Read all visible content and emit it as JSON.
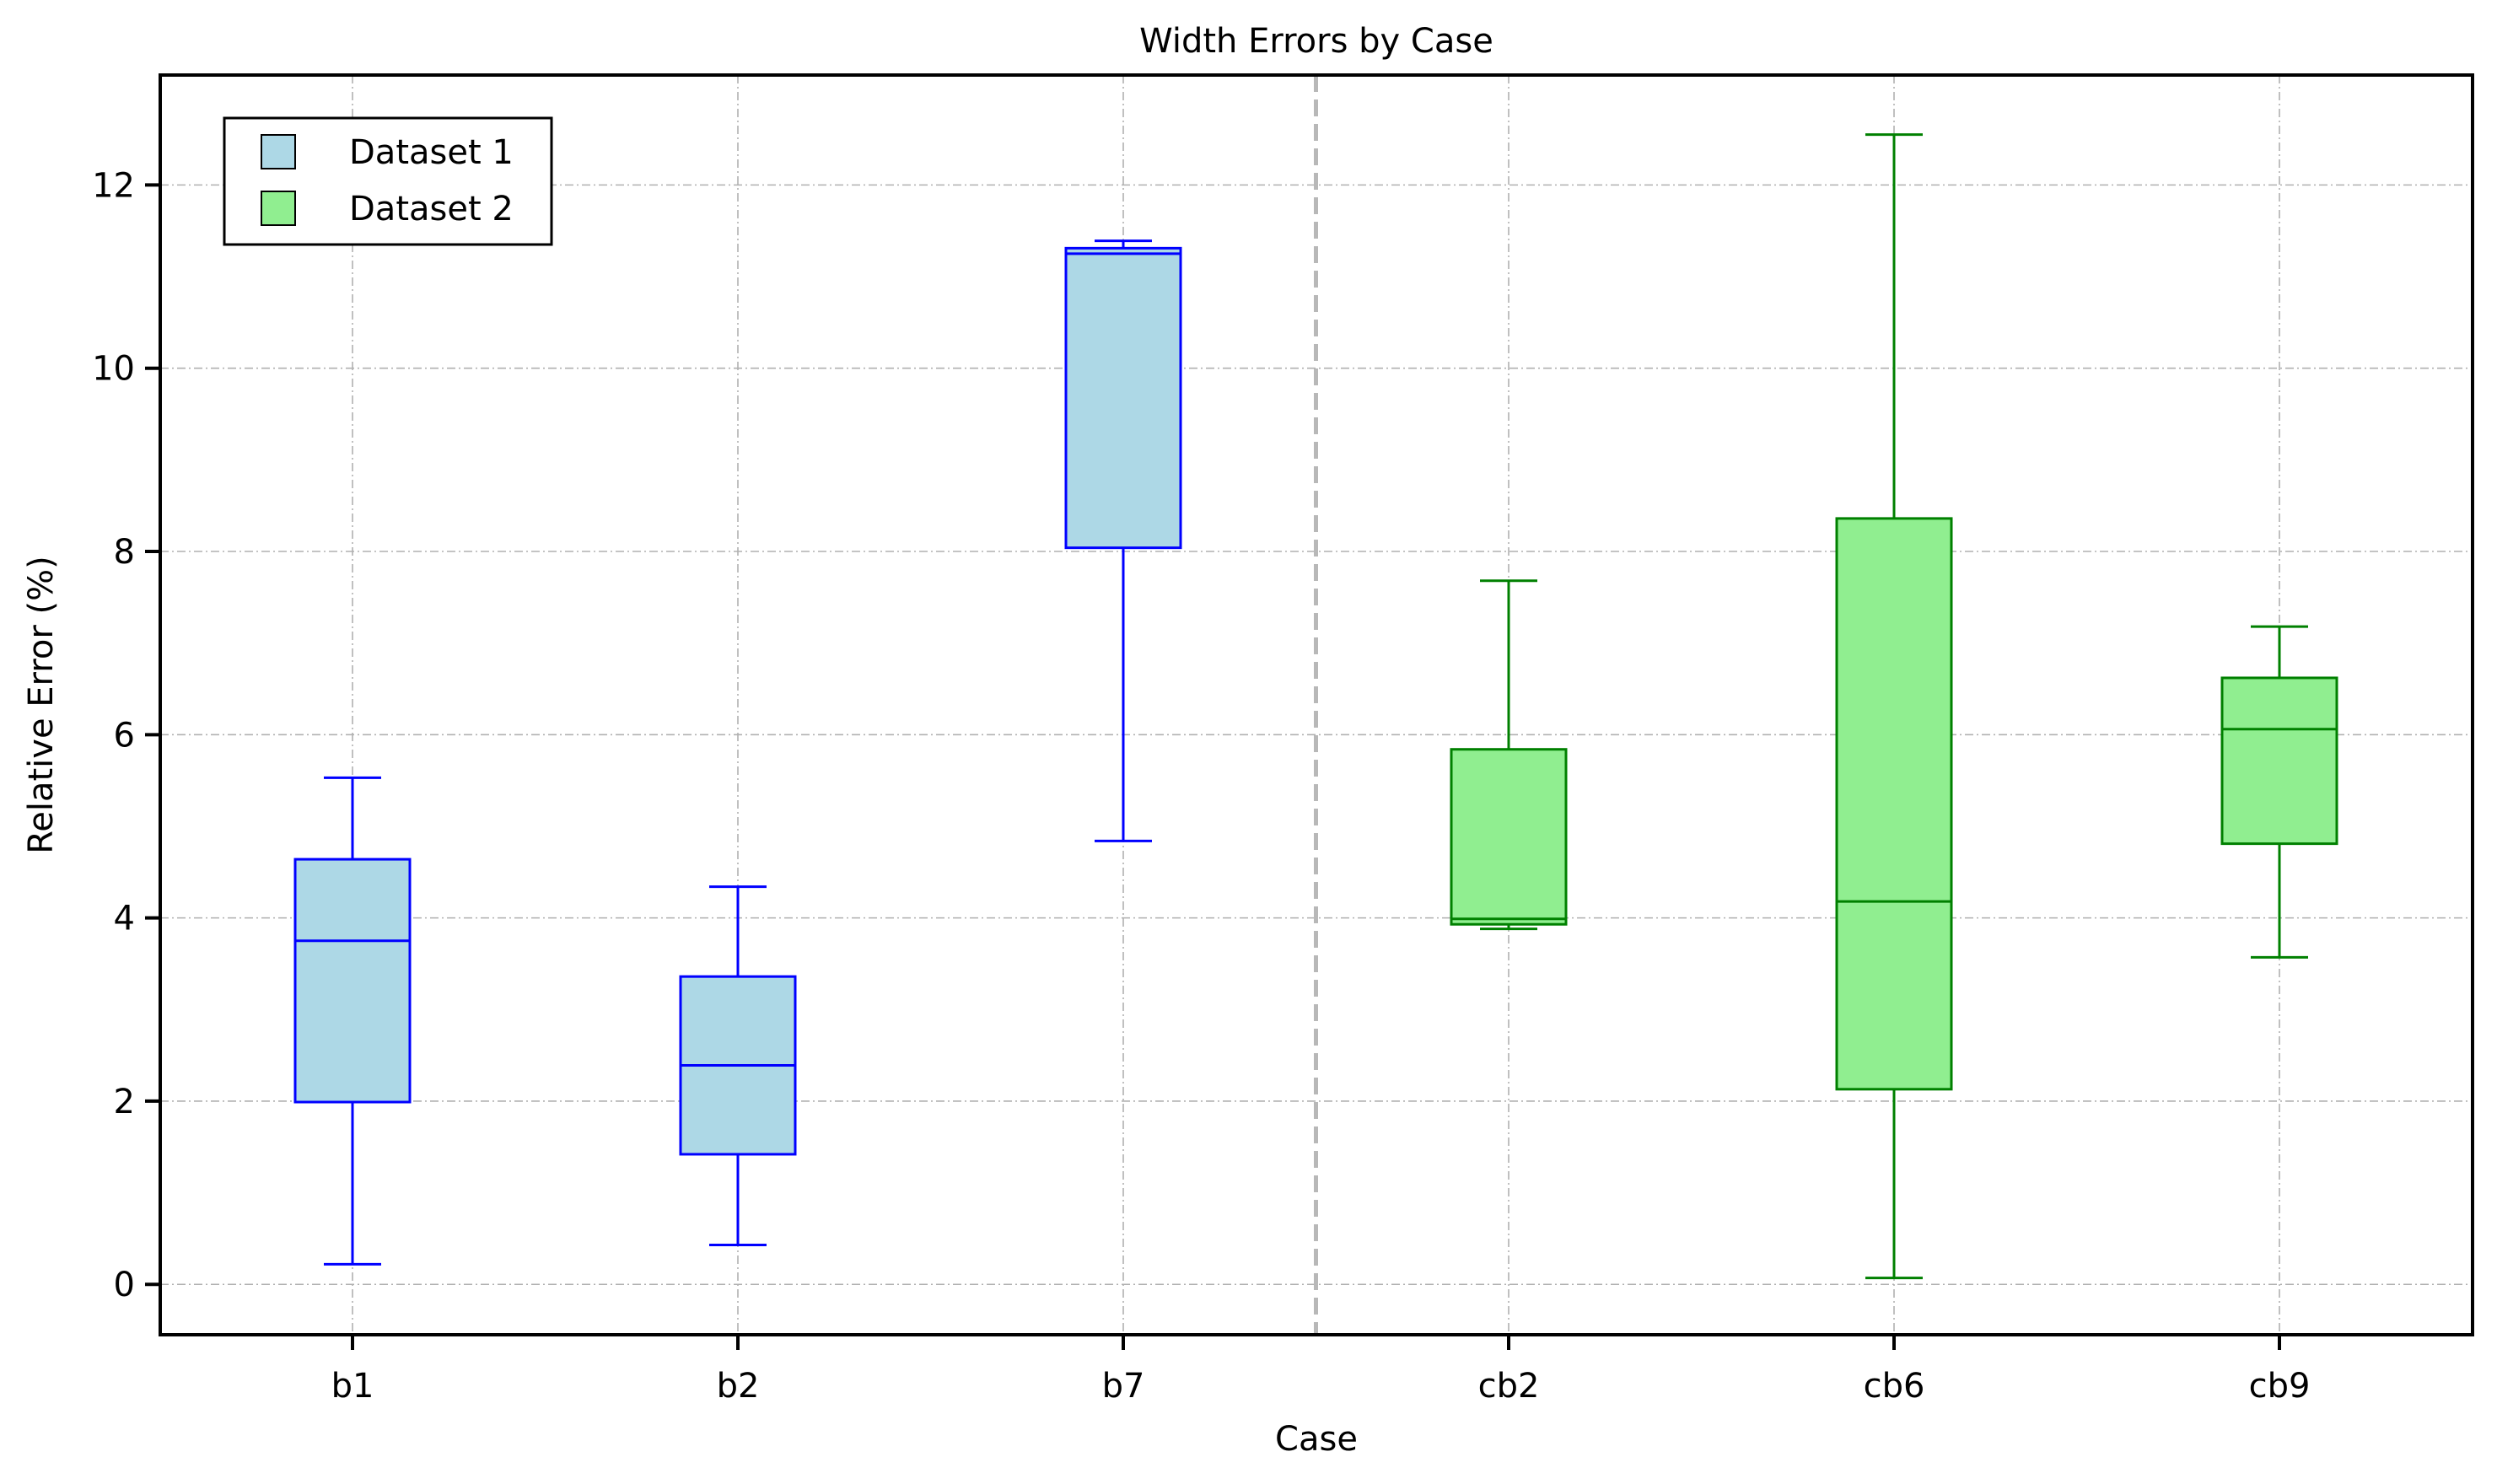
{
  "chart_data": {
    "type": "box",
    "title": "Width Errors by Case",
    "xlabel": "Case",
    "ylabel": "Relative Error (%)",
    "categories": [
      "b1",
      "b2",
      "b7",
      "cb2",
      "cb6",
      "cb9"
    ],
    "yticks": [
      0,
      2,
      4,
      6,
      8,
      10,
      12
    ],
    "ylim": [
      -0.55,
      13.2
    ],
    "grid": true,
    "legend_position": "top-left",
    "separator_after_category_index": 2,
    "series": [
      {
        "name": "Dataset 1",
        "fill": "#add8e6",
        "stroke": "#0000ff",
        "boxes": [
          {
            "category": "b1",
            "whisker_low": 0.22,
            "q1": 1.99,
            "median": 3.75,
            "q3": 4.64,
            "whisker_high": 5.53
          },
          {
            "category": "b2",
            "whisker_low": 0.43,
            "q1": 1.42,
            "median": 2.39,
            "q3": 3.36,
            "whisker_high": 4.34
          },
          {
            "category": "b7",
            "whisker_low": 4.84,
            "q1": 8.04,
            "median": 11.25,
            "q3": 11.31,
            "whisker_high": 11.39
          }
        ]
      },
      {
        "name": "Dataset 2",
        "fill": "#90ee90",
        "stroke": "#008000",
        "boxes": [
          {
            "category": "cb2",
            "whisker_low": 3.88,
            "q1": 3.93,
            "median": 3.99,
            "q3": 5.84,
            "whisker_high": 7.68
          },
          {
            "category": "cb6",
            "whisker_low": 0.07,
            "q1": 2.13,
            "median": 4.18,
            "q3": 8.36,
            "whisker_high": 12.55
          },
          {
            "category": "cb9",
            "whisker_low": 3.57,
            "q1": 4.81,
            "median": 6.06,
            "q3": 6.62,
            "whisker_high": 7.18
          }
        ]
      }
    ]
  }
}
